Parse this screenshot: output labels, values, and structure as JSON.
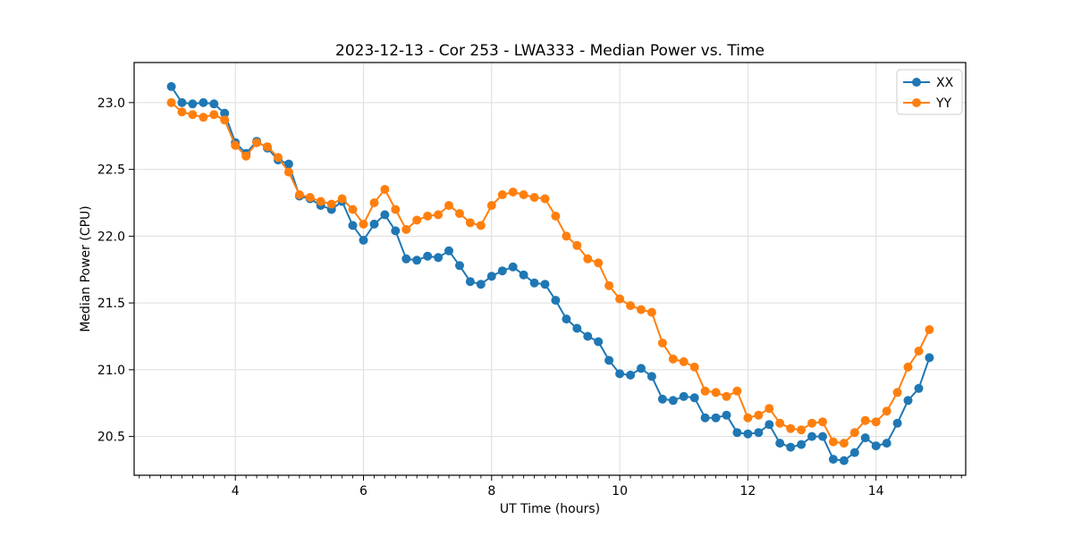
{
  "figure": {
    "background": "#ffffff",
    "axes_edge_color": "#000000",
    "grid_color": "#dddddd",
    "text_color": "#000000"
  },
  "chart_data": {
    "type": "line",
    "title": "2023-12-13 - Cor 253 - LWA333 - Median Power vs. Time",
    "xlabel": "UT Time (hours)",
    "ylabel": "Median Power (CPU)",
    "xlim": [
      2.42,
      15.4
    ],
    "ylim": [
      20.21,
      23.3
    ],
    "x_ticks": [
      4,
      6,
      8,
      10,
      12,
      14
    ],
    "y_ticks": [
      20.5,
      21.0,
      21.5,
      22.0,
      22.5,
      23.0
    ],
    "x_minor_tick_step": 0.16667,
    "grid": true,
    "legend_position": "upper right",
    "x": [
      3.0,
      3.167,
      3.333,
      3.5,
      3.667,
      3.833,
      4.0,
      4.167,
      4.333,
      4.5,
      4.667,
      4.833,
      5.0,
      5.167,
      5.333,
      5.5,
      5.667,
      5.833,
      6.0,
      6.167,
      6.333,
      6.5,
      6.667,
      6.833,
      7.0,
      7.167,
      7.333,
      7.5,
      7.667,
      7.833,
      8.0,
      8.167,
      8.333,
      8.5,
      8.667,
      8.833,
      9.0,
      9.167,
      9.333,
      9.5,
      9.667,
      9.833,
      10.0,
      10.167,
      10.333,
      10.5,
      10.667,
      10.833,
      11.0,
      11.167,
      11.333,
      11.5,
      11.667,
      11.833,
      12.0,
      12.167,
      12.333,
      12.5,
      12.667,
      12.833,
      13.0,
      13.167,
      13.333,
      13.5,
      13.667,
      13.833,
      14.0,
      14.167,
      14.333,
      14.5,
      14.667,
      14.833
    ],
    "series": [
      {
        "name": "XX",
        "color": "#1f77b4",
        "values": [
          23.12,
          23.0,
          22.99,
          23.0,
          22.99,
          22.92,
          22.7,
          22.62,
          22.71,
          22.66,
          22.57,
          22.54,
          22.3,
          22.28,
          22.23,
          22.2,
          22.26,
          22.08,
          21.97,
          22.09,
          22.16,
          22.04,
          21.83,
          21.82,
          21.85,
          21.84,
          21.89,
          21.78,
          21.66,
          21.64,
          21.7,
          21.74,
          21.77,
          21.71,
          21.65,
          21.64,
          21.52,
          21.38,
          21.31,
          21.25,
          21.21,
          21.07,
          20.97,
          20.96,
          21.01,
          20.95,
          20.78,
          20.77,
          20.8,
          20.79,
          20.64,
          20.64,
          20.66,
          20.53,
          20.52,
          20.53,
          20.59,
          20.45,
          20.42,
          20.44,
          20.5,
          20.5,
          20.33,
          20.32,
          20.38,
          20.49,
          20.43,
          20.45,
          20.6,
          20.77,
          20.86,
          21.09
        ]
      },
      {
        "name": "YY",
        "color": "#ff7f0e",
        "values": [
          23.0,
          22.93,
          22.91,
          22.89,
          22.91,
          22.87,
          22.68,
          22.6,
          22.7,
          22.67,
          22.59,
          22.48,
          22.31,
          22.29,
          22.26,
          22.24,
          22.28,
          22.2,
          22.09,
          22.25,
          22.35,
          22.2,
          22.05,
          22.12,
          22.15,
          22.16,
          22.23,
          22.17,
          22.1,
          22.08,
          22.23,
          22.31,
          22.33,
          22.31,
          22.29,
          22.28,
          22.15,
          22.0,
          21.93,
          21.83,
          21.8,
          21.63,
          21.53,
          21.48,
          21.45,
          21.43,
          21.2,
          21.08,
          21.06,
          21.02,
          20.84,
          20.83,
          20.8,
          20.84,
          20.64,
          20.66,
          20.71,
          20.6,
          20.56,
          20.55,
          20.6,
          20.61,
          20.46,
          20.45,
          20.53,
          20.62,
          20.61,
          20.69,
          20.83,
          21.02,
          21.14,
          21.3
        ]
      }
    ]
  }
}
